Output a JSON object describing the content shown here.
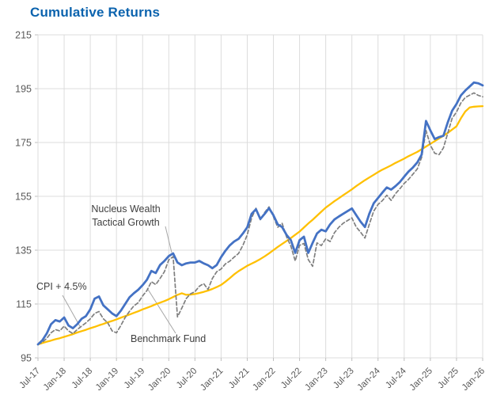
{
  "chart": {
    "title": "Cumulative Returns"
  },
  "colors": {
    "title": "#0B63AE",
    "axis_text": "#595959",
    "grid": "#DCDCDC",
    "tick": "#BFBFBF",
    "annotation_text": "#3F3F3F",
    "leader_line": "#A6A6A6",
    "background": "#FFFFFF",
    "nucleus_blue": "#4472C4",
    "benchmark_gray": "#7F7F7F",
    "cpi_yellow": "#FFC000"
  },
  "chart_data": {
    "type": "line",
    "title": "Cumulative Returns",
    "xlabel": "",
    "ylabel": "",
    "ylim": [
      95,
      215
    ],
    "y_ticks": [
      95,
      115,
      135,
      155,
      175,
      195,
      215
    ],
    "grid": true,
    "legend_position": "annotations-on-chart",
    "x_unit": "month, Jul-2017 to Jan-2026, ticks every 6 months",
    "x_tick_labels": [
      "Jul-17",
      "Jan-18",
      "Jul-18",
      "Jan-19",
      "Jul-19",
      "Jan-20",
      "Jul-20",
      "Jan-21",
      "Jul-21",
      "Jan-22",
      "Jul-22",
      "Jan-23",
      "Jul-23",
      "Jan-24",
      "Jul-24",
      "Jan-25",
      "Jul-25",
      "Jan-26"
    ],
    "series": [
      {
        "id": "cpi",
        "name": "CPI + 4.5%",
        "color": "#FFC000",
        "style": "solid",
        "width": 2.3,
        "values": [
          100,
          100.5,
          101,
          101.4,
          101.9,
          102.3,
          102.8,
          103.3,
          103.8,
          104.4,
          104.9,
          105.4,
          106,
          106.5,
          107.1,
          107.6,
          108.2,
          108.7,
          109.3,
          109.9,
          110.5,
          111.1,
          111.7,
          112.3,
          113,
          113.6,
          114.2,
          114.9,
          115.5,
          116.1,
          116.8,
          117.6,
          118.4,
          119,
          118.4,
          118.5,
          118.7,
          119.1,
          119.5,
          120,
          120.6,
          121.3,
          122.1,
          123.3,
          124.6,
          126,
          127.2,
          128.2,
          129.2,
          130,
          130.8,
          131.7,
          132.7,
          133.8,
          135,
          136.2,
          137.3,
          138.4,
          139.5,
          140.7,
          141.9,
          143.4,
          144.9,
          146.3,
          147.8,
          149.3,
          150.8,
          152,
          153.2,
          154.3,
          155.4,
          156.5,
          157.6,
          158.8,
          159.9,
          161,
          162,
          163,
          164,
          164.9,
          165.7,
          166.5,
          167.4,
          168.2,
          169,
          169.9,
          170.7,
          171.5,
          172.5,
          173.5,
          174.5,
          175.5,
          176.5,
          177.5,
          178.6,
          179.8,
          181,
          184,
          186.5,
          188,
          188.3,
          188.4,
          188.5
        ]
      },
      {
        "id": "benchmark",
        "name": "Benchmark Fund",
        "color": "#7F7F7F",
        "style": "dashed",
        "width": 1.7,
        "values": [
          100,
          100.8,
          102.2,
          104.3,
          105.5,
          105,
          106.8,
          105,
          104,
          105.5,
          106.8,
          108,
          109.5,
          111.5,
          112.2,
          109.5,
          108,
          105,
          104.3,
          107,
          110,
          112.3,
          114.3,
          115.5,
          118,
          120,
          123.3,
          122.2,
          124.5,
          127,
          131.4,
          132.6,
          110.2,
          113.5,
          117,
          118.8,
          119.6,
          121.6,
          122.6,
          120.4,
          124.5,
          127,
          128,
          129.9,
          130.9,
          132.4,
          133.8,
          136.8,
          140.7,
          147,
          150.6,
          146.3,
          149,
          151.1,
          147.5,
          143.5,
          145,
          140,
          136.5,
          131,
          136.8,
          137.5,
          131.5,
          129,
          137.7,
          136.7,
          139.2,
          138.2,
          141.5,
          143.5,
          145,
          146,
          147,
          143.6,
          141.7,
          139.5,
          144.6,
          149.5,
          152,
          153.4,
          155.4,
          153.5,
          156,
          157.8,
          159.8,
          161.3,
          163.2,
          165.2,
          169.5,
          179.5,
          174,
          171,
          170.5,
          173,
          178.5,
          184,
          186.3,
          189.7,
          191.7,
          192.6,
          193.4,
          192.5,
          192
        ]
      },
      {
        "id": "nucleus",
        "name": "Nucleus Wealth Tactical Growth",
        "color": "#4472C4",
        "style": "solid",
        "width": 2.8,
        "values": [
          100,
          101.5,
          104,
          107.5,
          109,
          108.5,
          110,
          107,
          106,
          107.5,
          109.5,
          110.5,
          113,
          117,
          117.8,
          114.5,
          113,
          111.5,
          110.5,
          112.5,
          115,
          117.5,
          119,
          120.3,
          122,
          124,
          127.3,
          126.5,
          129.5,
          131,
          132.8,
          133.8,
          130.4,
          129.4,
          130.1,
          130.4,
          130.4,
          131,
          130.1,
          129.4,
          128.3,
          129.5,
          132.4,
          134.8,
          136.8,
          138.2,
          139.2,
          141.2,
          143.5,
          148.5,
          150.2,
          146.6,
          148.5,
          150.6,
          148,
          144.6,
          143.6,
          140.7,
          138.7,
          134,
          138.7,
          140,
          134,
          137.7,
          141.2,
          142.6,
          142,
          144.6,
          146.4,
          147.5,
          148.5,
          149.5,
          150.5,
          148,
          145.6,
          143.6,
          148.5,
          152.4,
          154.4,
          156.4,
          158.3,
          157.5,
          158.8,
          160.3,
          162.3,
          164.2,
          165.7,
          167.6,
          170.5,
          183,
          179.5,
          176.3,
          177,
          177.5,
          182.5,
          186.8,
          189.3,
          192.5,
          194.3,
          195.8,
          197.3,
          197,
          196.2
        ]
      }
    ],
    "annotations": [
      {
        "id": "nucleus",
        "lines": [
          "Nucleus Wealth",
          "Tactical Growth"
        ],
        "points_to_series": "Nucleus Wealth Tactical Growth"
      },
      {
        "id": "cpi",
        "lines": [
          "CPI + 4.5%"
        ],
        "points_to_series": "CPI + 4.5%"
      },
      {
        "id": "benchmark",
        "lines": [
          "Benchmark Fund"
        ],
        "points_to_series": "Benchmark Fund"
      }
    ]
  }
}
